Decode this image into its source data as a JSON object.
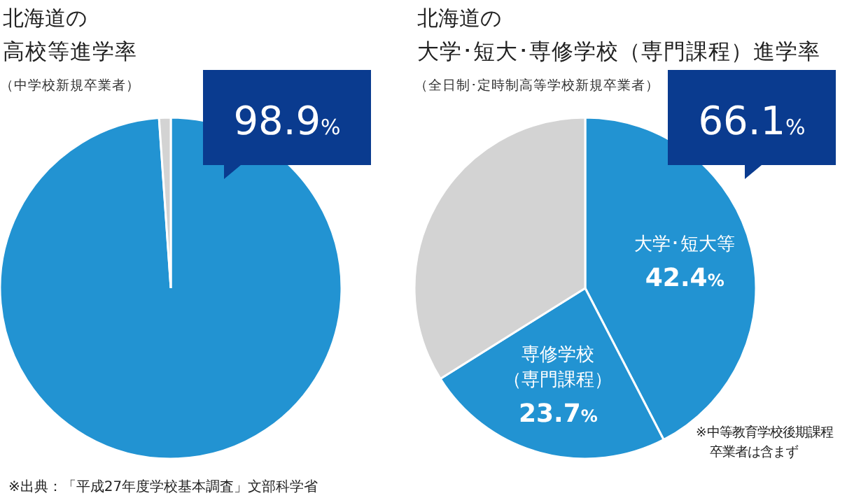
{
  "chart_data": [
    {
      "type": "pie",
      "title": "北海道の高校等進学率",
      "subtitle": "（中学校新規卒業者）",
      "categories": [
        null,
        null
      ],
      "values": [
        98.9,
        1.1
      ],
      "colors": [
        "#2293d2",
        "#d3d3d3"
      ],
      "annotations": [
        "98.9%",
        "※出典：「平成27年度学校基本調査」文部科学省"
      ]
    },
    {
      "type": "pie",
      "title": "北海道の大学･短大･専修学校（専門課程）進学率",
      "subtitle": "（全日制･定時制高等学校新規卒業者）",
      "categories": [
        "大学･短大等",
        "専修学校（専門課程）",
        null
      ],
      "values": [
        42.4,
        23.7,
        33.9
      ],
      "colors": [
        "#2293d2",
        "#2293d2",
        "#d3d3d3"
      ],
      "value_labels": [
        "42.4%",
        "23.7%",
        null
      ],
      "annotations": [
        "66.1%",
        "※中等教育学校後期課程卒業者は含まず"
      ]
    }
  ]
}
